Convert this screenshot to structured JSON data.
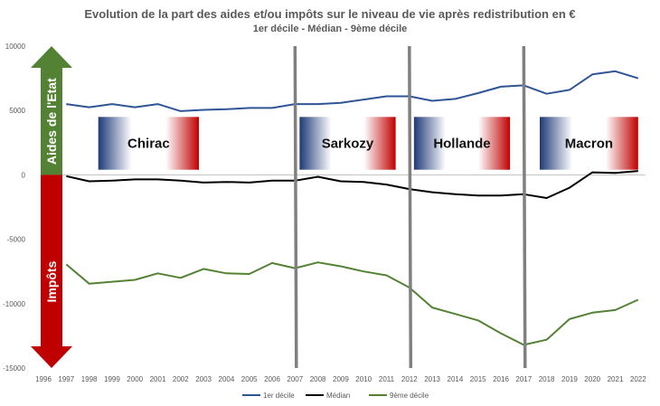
{
  "chart_data": {
    "type": "line",
    "title": "Evolution de la part des aides et/ou impôts sur le niveau de vie après redistribution en €",
    "subtitle": "1er décile - Médian - 9ème décile",
    "xlabel": "",
    "ylabel": "",
    "ylim": [
      -15000,
      10000
    ],
    "yticks": [
      10000,
      5000,
      0,
      -5000,
      -10000,
      -15000
    ],
    "ytick_labels": [
      "10000",
      "5000",
      "0",
      "-5000",
      "-10000",
      "-15000"
    ],
    "x_categories": [
      "1996",
      "1997",
      "1998",
      "1999",
      "2000",
      "2001",
      "2002",
      "2003",
      "2004",
      "2005",
      "2006",
      "2007",
      "2008",
      "2009",
      "2010",
      "2011",
      "2012",
      "2013",
      "2014",
      "2015",
      "2016",
      "2017",
      "2018",
      "2019",
      "2020",
      "2021",
      "2022"
    ],
    "grid": false,
    "legend_position": "bottom",
    "series": [
      {
        "name": "1er décile",
        "color": "#2f5597",
        "x": [
          1997,
          1998,
          1999,
          2000,
          2001,
          2002,
          2003,
          2004,
          2005,
          2006,
          2007,
          2008,
          2009,
          2010,
          2011,
          2012,
          2013,
          2014,
          2015,
          2016,
          2017,
          2018,
          2019,
          2020,
          2021,
          2022
        ],
        "values": [
          5500,
          5250,
          5500,
          5250,
          5500,
          4950,
          5050,
          5100,
          5200,
          5200,
          5500,
          5500,
          5600,
          5850,
          6100,
          6100,
          5750,
          5900,
          6350,
          6850,
          6950,
          6300,
          6600,
          7800,
          8050,
          7500
        ]
      },
      {
        "name": "Médian",
        "color": "#000000",
        "x": [
          1997,
          1998,
          1999,
          2000,
          2001,
          2002,
          2003,
          2004,
          2005,
          2006,
          2007,
          2008,
          2009,
          2010,
          2011,
          2012,
          2013,
          2014,
          2015,
          2016,
          2017,
          2018,
          2019,
          2020,
          2021,
          2022
        ],
        "values": [
          -100,
          -500,
          -450,
          -350,
          -350,
          -450,
          -600,
          -550,
          -600,
          -450,
          -450,
          -150,
          -500,
          -550,
          -750,
          -1100,
          -1350,
          -1500,
          -1600,
          -1600,
          -1500,
          -1800,
          -1000,
          200,
          150,
          300
        ]
      },
      {
        "name": "9ème décile",
        "color": "#548235",
        "x": [
          1997,
          1998,
          1999,
          2000,
          2001,
          2002,
          2003,
          2004,
          2005,
          2006,
          2007,
          2008,
          2009,
          2010,
          2011,
          2012,
          2013,
          2014,
          2015,
          2016,
          2017,
          2018,
          2019,
          2020,
          2021,
          2022
        ],
        "values": [
          -6950,
          -8450,
          -8300,
          -8150,
          -7650,
          -8000,
          -7300,
          -7650,
          -7700,
          -6850,
          -7250,
          -6800,
          -7100,
          -7500,
          -7800,
          -8750,
          -10300,
          -10800,
          -11300,
          -12300,
          -13200,
          -12800,
          -11200,
          -10700,
          -10500,
          -9700
        ]
      }
    ],
    "period_dividers": [
      2007,
      2012,
      2017
    ],
    "presidents": [
      {
        "label": "Chirac",
        "from": 1998.4,
        "to": 2002.8
      },
      {
        "label": "Sarkozy",
        "from": 2007.2,
        "to": 2011.4
      },
      {
        "label": "Hollande",
        "from": 2012.2,
        "to": 2016.4
      },
      {
        "label": "Macron",
        "from": 2017.7,
        "to": 2022.0
      }
    ],
    "arrows": {
      "up_label": "Aides de l'Etat",
      "up_color": "#548235",
      "down_label": "Impôts",
      "down_color": "#c00000"
    }
  }
}
